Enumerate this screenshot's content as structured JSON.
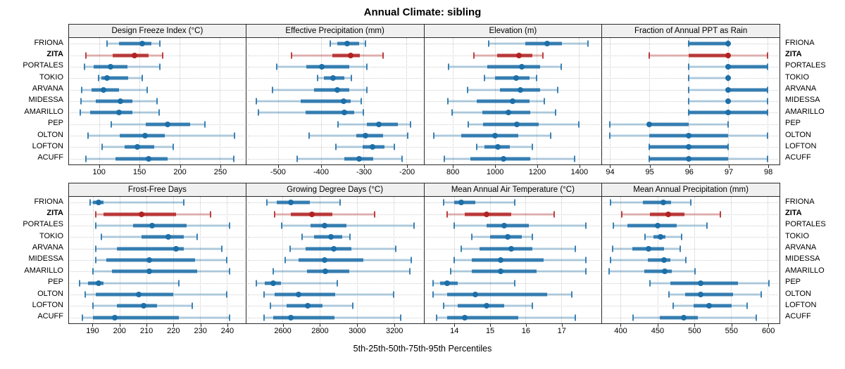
{
  "title": "Annual Climate: sibling",
  "caption": "5th-25th-50th-75th-95th Percentiles",
  "sites": [
    "FRIONA",
    "ZITA",
    "PORTALES",
    "TOKIO",
    "ARVANA",
    "MIDESSA",
    "AMARILLO",
    "PEP",
    "OLTON",
    "LOFTON",
    "ACUFF"
  ],
  "highlight_site": "ZITA",
  "colors": {
    "series": "#1d6fa8",
    "highlight": "#b22222",
    "header_bg": "#f0f0f0",
    "grid": "#c9c9c9",
    "border": "#2a2a2a"
  },
  "chart_data": {
    "type": "dot-interval percentile plot (5th-25th-50th-75th-95th), 2x4 trellis",
    "categories": [
      "FRIONA",
      "ZITA",
      "PORTALES",
      "TOKIO",
      "ARVANA",
      "MIDESSA",
      "AMARILLO",
      "PEP",
      "OLTON",
      "LOFTON",
      "ACUFF"
    ],
    "highlight_category": "ZITA",
    "title": "Annual Climate: sibling",
    "legend": "5th-25th-50th-75th-95th Percentiles",
    "grid": "dotted",
    "panels": [
      {
        "title": "Design Freeze Index (°C)",
        "row": 1,
        "col": 1,
        "xlim": [
          62,
          282
        ],
        "ticks": [
          100,
          150,
          200,
          250
        ],
        "series": [
          [
            109,
            124,
            153,
            165,
            175
          ],
          [
            83,
            116,
            144,
            161,
            179
          ],
          [
            81,
            93,
            114,
            135,
            175
          ],
          [
            99,
            102,
            109,
            136,
            153
          ],
          [
            78,
            90,
            105,
            124,
            159
          ],
          [
            77,
            95,
            126,
            141,
            172
          ],
          [
            76,
            88,
            124,
            141,
            174
          ],
          [
            115,
            158,
            185,
            213,
            231
          ],
          [
            86,
            125,
            157,
            181,
            268
          ],
          [
            103,
            131,
            147,
            168,
            192
          ],
          [
            83,
            120,
            161,
            185,
            267
          ]
        ]
      },
      {
        "title": "Effective Precipitation (mm)",
        "row": 1,
        "col": 2,
        "xlim": [
          -574,
          -160
        ],
        "ticks": [
          -500,
          -400,
          -300,
          -200
        ],
        "series": [
          [
            -378,
            -361,
            -338,
            -311,
            -295
          ],
          [
            -469,
            -373,
            -331,
            -309,
            -255
          ],
          [
            -503,
            -433,
            -397,
            -334,
            -292
          ],
          [
            -407,
            -393,
            -371,
            -345,
            -329
          ],
          [
            -512,
            -415,
            -362,
            -334,
            -292
          ],
          [
            -551,
            -447,
            -346,
            -331,
            -305
          ],
          [
            -545,
            -436,
            -345,
            -322,
            -300
          ],
          [
            -359,
            -293,
            -264,
            -220,
            -190
          ],
          [
            -428,
            -317,
            -296,
            -254,
            -197
          ],
          [
            -365,
            -303,
            -280,
            -252,
            -228
          ],
          [
            -456,
            -345,
            -310,
            -277,
            -210
          ]
        ]
      },
      {
        "title": "Elevation (m)",
        "row": 1,
        "col": 3,
        "xlim": [
          664,
          1508
        ],
        "ticks": [
          800,
          1000,
          1200,
          1400
        ],
        "series": [
          [
            970,
            1145,
            1250,
            1320,
            1445
          ],
          [
            900,
            1010,
            1115,
            1180,
            1230
          ],
          [
            780,
            965,
            1130,
            1215,
            1315
          ],
          [
            950,
            1000,
            1100,
            1165,
            1200
          ],
          [
            870,
            1025,
            1120,
            1215,
            1300
          ],
          [
            775,
            915,
            1085,
            1165,
            1235
          ],
          [
            795,
            940,
            1065,
            1170,
            1290
          ],
          [
            875,
            945,
            1105,
            1210,
            1400
          ],
          [
            710,
            840,
            1000,
            1110,
            1265
          ],
          [
            915,
            950,
            1015,
            1070,
            1180
          ],
          [
            760,
            885,
            1040,
            1170,
            1380
          ]
        ]
      },
      {
        "title": "Fraction of Annual PPT as Rain",
        "row": 1,
        "col": 4,
        "xlim": [
          93.8,
          98.3
        ],
        "ticks": [
          94,
          95,
          96,
          97,
          98
        ],
        "series": [
          [
            96,
            96,
            97,
            97,
            97
          ],
          [
            95,
            96,
            97,
            97,
            98
          ],
          [
            96,
            97,
            97,
            98,
            98
          ],
          [
            96,
            97,
            97,
            97,
            97
          ],
          [
            96,
            97,
            97,
            98,
            98
          ],
          [
            96,
            97,
            97,
            97,
            98
          ],
          [
            96,
            96,
            97,
            98,
            98
          ],
          [
            94,
            95,
            95,
            96,
            97
          ],
          [
            94,
            95,
            96,
            97,
            98
          ],
          [
            95,
            95,
            96,
            97,
            97
          ],
          [
            95,
            95,
            96,
            97,
            98
          ]
        ]
      },
      {
        "title": "Frost-Free Days",
        "row": 2,
        "col": 1,
        "xlim": [
          181,
          247
        ],
        "ticks": [
          190,
          200,
          210,
          220,
          230,
          240
        ],
        "series": [
          [
            189,
            190,
            192,
            194,
            224
          ],
          [
            191,
            194,
            208,
            221,
            234
          ],
          [
            191,
            205,
            212,
            225,
            241
          ],
          [
            193,
            208,
            218,
            224,
            229
          ],
          [
            191,
            199,
            221,
            224,
            238
          ],
          [
            191,
            195,
            211,
            228,
            240
          ],
          [
            190,
            197,
            211,
            229,
            241
          ],
          [
            185,
            188,
            192,
            194,
            222
          ],
          [
            187,
            191,
            207,
            220,
            240
          ],
          [
            190,
            199,
            209,
            214,
            227
          ],
          [
            186,
            190,
            198,
            222,
            241
          ]
        ]
      },
      {
        "title": "Growing Degree Days (°C)",
        "row": 2,
        "col": 2,
        "xlim": [
          2404,
          3360
        ],
        "ticks": [
          2600,
          2800,
          3000,
          3200
        ],
        "series": [
          [
            2515,
            2570,
            2645,
            2745,
            2910
          ],
          [
            2555,
            2645,
            2760,
            2870,
            3095
          ],
          [
            2595,
            2750,
            2825,
            2945,
            3310
          ],
          [
            2705,
            2770,
            2860,
            2920,
            2965
          ],
          [
            2640,
            2725,
            2875,
            2970,
            3210
          ],
          [
            2615,
            2685,
            2825,
            3035,
            3295
          ],
          [
            2550,
            2730,
            2830,
            2960,
            3285
          ],
          [
            2460,
            2505,
            2550,
            2590,
            2895
          ],
          [
            2500,
            2555,
            2685,
            2885,
            3200
          ],
          [
            2535,
            2620,
            2735,
            2815,
            2980
          ],
          [
            2500,
            2550,
            2645,
            2880,
            3235
          ]
        ]
      },
      {
        "title": "Mean Annual Air Temperature (°C)",
        "row": 2,
        "col": 3,
        "xlim": [
          13.16,
          18.13
        ],
        "ticks": [
          14,
          15,
          16,
          17
        ],
        "series": [
          [
            13.7,
            14.0,
            14.2,
            14.6,
            15.7
          ],
          [
            13.8,
            14.3,
            14.9,
            15.6,
            16.8
          ],
          [
            14.0,
            14.9,
            15.4,
            16.1,
            17.7
          ],
          [
            14.5,
            15.0,
            15.5,
            15.9,
            16.2
          ],
          [
            14.2,
            14.7,
            15.6,
            16.2,
            17.4
          ],
          [
            14.0,
            14.5,
            15.3,
            16.5,
            17.7
          ],
          [
            13.9,
            14.5,
            15.3,
            16.3,
            17.7
          ],
          [
            13.4,
            13.6,
            13.8,
            14.1,
            15.7
          ],
          [
            13.4,
            13.8,
            14.6,
            16.6,
            17.3
          ],
          [
            13.7,
            14.1,
            14.9,
            15.4,
            16.2
          ],
          [
            13.5,
            13.8,
            14.3,
            15.8,
            17.4
          ]
        ]
      },
      {
        "title": "Mean Annual Precipitation (mm)",
        "row": 2,
        "col": 4,
        "xlim": [
          375,
          616
        ],
        "ticks": [
          400,
          450,
          500,
          550,
          600
        ],
        "series": [
          [
            386,
            430,
            458,
            469,
            495
          ],
          [
            402,
            440,
            465,
            487,
            536
          ],
          [
            390,
            409,
            450,
            476,
            517
          ],
          [
            433,
            445,
            454,
            461,
            483
          ],
          [
            389,
            416,
            438,
            459,
            481
          ],
          [
            386,
            437,
            459,
            468,
            489
          ],
          [
            384,
            432,
            460,
            470,
            501
          ],
          [
            440,
            468,
            509,
            560,
            602
          ],
          [
            466,
            488,
            509,
            553,
            591
          ],
          [
            471,
            499,
            520,
            551,
            572
          ],
          [
            417,
            453,
            486,
            505,
            584
          ]
        ]
      }
    ]
  }
}
